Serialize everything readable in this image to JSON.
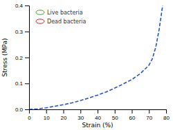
{
  "chart_data": {
    "type": "line",
    "xlabel": "Strain (%)",
    "ylabel": "Stress (MPa)",
    "x": [
      0,
      5,
      10,
      15,
      20,
      25,
      30,
      35,
      40,
      45,
      50,
      55,
      60,
      65,
      70,
      72,
      74,
      76,
      78
    ],
    "values": [
      0.0,
      0.002,
      0.006,
      0.012,
      0.018,
      0.025,
      0.034,
      0.044,
      0.055,
      0.067,
      0.082,
      0.098,
      0.115,
      0.138,
      0.17,
      0.195,
      0.24,
      0.31,
      0.4
    ],
    "color": "#2255cc",
    "line_style": "dashed",
    "xlim": [
      0,
      80
    ],
    "ylim": [
      0,
      0.4
    ],
    "xticks": [
      0,
      10,
      20,
      30,
      40,
      50,
      60,
      70,
      80
    ],
    "yticks": [
      {
        "value": 0.0,
        "label": "0.0"
      },
      0.1,
      0.2,
      0.3,
      0.4
    ],
    "grid": false,
    "annotations": [
      {
        "text": "Live bacteria",
        "color": "#4a9a2a"
      },
      {
        "text": "Dead bacteria",
        "color": "#cc2222"
      }
    ]
  }
}
